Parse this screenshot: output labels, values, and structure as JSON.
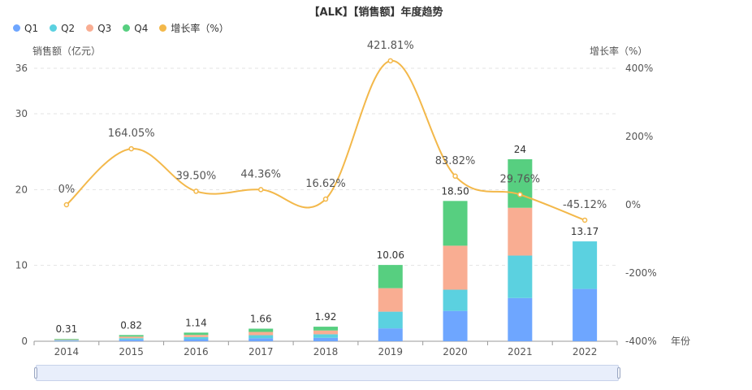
{
  "chart_data": {
    "type": "bar+line",
    "title": "【ALK】【销售额】年度趋势",
    "xlabel": "年份",
    "ylabel_left": "销售额（亿元）",
    "ylabel_right": "增长率（%）",
    "categories": [
      "2014",
      "2015",
      "2016",
      "2017",
      "2018",
      "2019",
      "2020",
      "2021",
      "2022"
    ],
    "series": [
      {
        "name": "Q1",
        "type": "bar",
        "color": "#6ea6ff",
        "values": [
          0.07,
          0.2,
          0.27,
          0.4,
          0.45,
          1.7,
          4.0,
          5.7,
          6.9
        ]
      },
      {
        "name": "Q2",
        "type": "bar",
        "color": "#5bd1e0",
        "values": [
          0.08,
          0.2,
          0.28,
          0.4,
          0.47,
          2.2,
          2.8,
          5.6,
          6.27
        ]
      },
      {
        "name": "Q3",
        "type": "bar",
        "color": "#f9ad92",
        "values": [
          0.08,
          0.21,
          0.29,
          0.43,
          0.5,
          3.1,
          5.8,
          6.3,
          0
        ]
      },
      {
        "name": "Q4",
        "type": "bar",
        "color": "#57cf80",
        "values": [
          0.08,
          0.21,
          0.3,
          0.43,
          0.5,
          3.06,
          5.9,
          6.4,
          0
        ]
      },
      {
        "name": "增长率（%）",
        "type": "line",
        "color": "#f3b84a",
        "values": [
          0,
          164.05,
          39.5,
          44.36,
          16.62,
          421.81,
          83.82,
          29.76,
          -45.12
        ]
      }
    ],
    "totals": [
      0.31,
      0.82,
      1.14,
      1.66,
      1.92,
      10.06,
      18.5,
      24,
      13.17
    ],
    "total_labels": [
      "0.31",
      "0.82",
      "1.14",
      "1.66",
      "1.92",
      "10.06",
      "18.50",
      "24",
      "13.17"
    ],
    "growth_labels": [
      "0%",
      "164.05%",
      "39.50%",
      "44.36%",
      "16.62%",
      "421.81%",
      "83.82%",
      "29.76%",
      "-45.12%"
    ],
    "ylim_left": [
      0,
      36
    ],
    "yticks_left": [
      0,
      10,
      20,
      30,
      36
    ],
    "ylim_right": [
      -400,
      400
    ],
    "yticks_right": [
      -400,
      -200,
      0,
      200,
      400
    ],
    "yticks_right_labels": [
      "-400%",
      "-200%",
      "0%",
      "200%",
      "400%"
    ],
    "grid": true,
    "legend_position": "top-left"
  }
}
